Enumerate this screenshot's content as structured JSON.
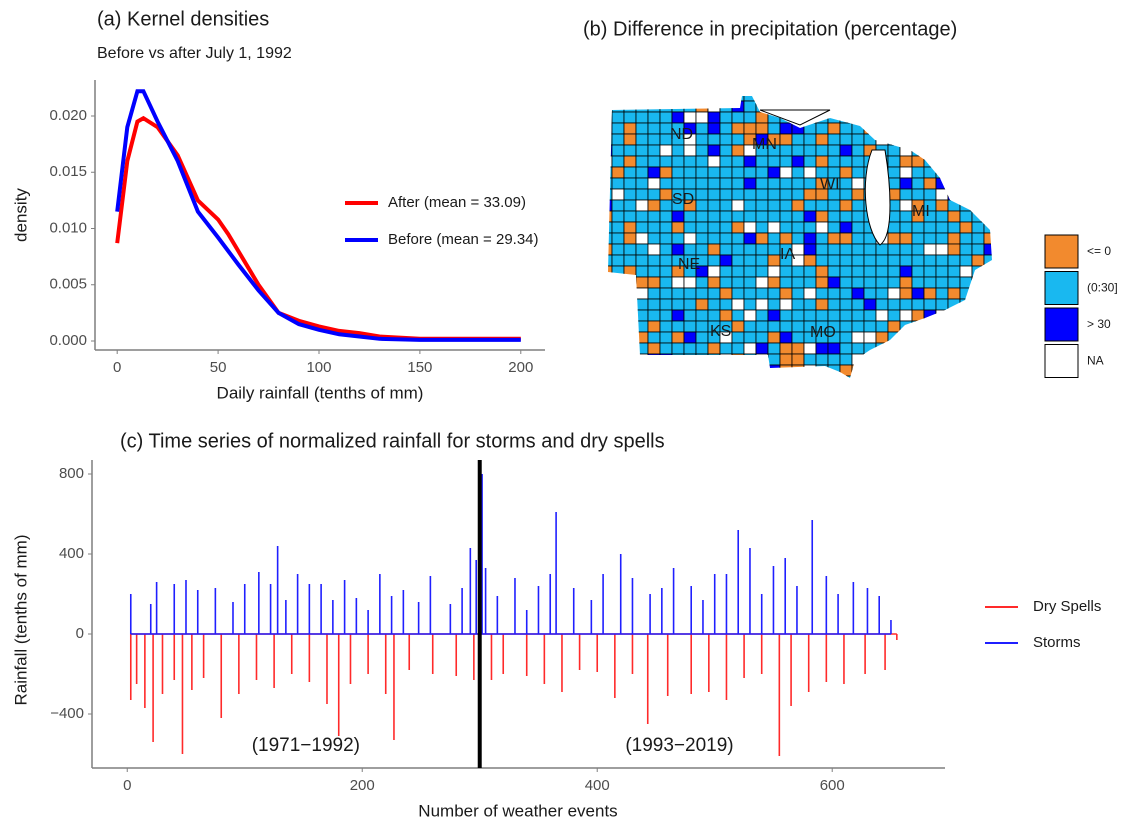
{
  "chart_data": [
    {
      "type": "line",
      "title": "(a) Kernel densities",
      "subtitle": "Before vs after July 1, 1992",
      "x_label": "Daily rainfall (tenths of mm)",
      "y_label": "density",
      "x": [
        0,
        5,
        10,
        13,
        20,
        30,
        40,
        50,
        55,
        60,
        70,
        80,
        90,
        100,
        110,
        120,
        130,
        150,
        200
      ],
      "series": [
        {
          "name": "After (mean = 33.09)",
          "color": "#ff0000",
          "values": [
            0.0087,
            0.016,
            0.0195,
            0.0198,
            0.019,
            0.0165,
            0.0125,
            0.0108,
            0.0095,
            0.008,
            0.005,
            0.0025,
            0.0018,
            0.0013,
            0.0009,
            0.0007,
            0.0004,
            0.0002,
            0.0002
          ]
        },
        {
          "name": "Before (mean = 29.34)",
          "color": "#0000ff",
          "values": [
            0.0115,
            0.019,
            0.0222,
            0.0222,
            0.0195,
            0.016,
            0.0115,
            0.0092,
            0.008,
            0.0068,
            0.0045,
            0.0025,
            0.0015,
            0.001,
            0.0006,
            0.0004,
            0.0002,
            0.0001,
            0.0001
          ]
        }
      ],
      "xlim": [
        -11,
        212
      ],
      "xticks": [
        0,
        50,
        100,
        150,
        200
      ],
      "ylim": [
        -0.0008,
        0.0232
      ],
      "yticks": [
        {
          "value": 0,
          "label": "0.000"
        },
        {
          "value": 0.005,
          "label": "0.005"
        },
        {
          "value": 0.01,
          "label": "0.010"
        },
        {
          "value": 0.015,
          "label": "0.015"
        },
        {
          "value": 0.02,
          "label": "0.020"
        }
      ]
    },
    {
      "type": "map",
      "title": "(b) Difference in precipitation (percentage)",
      "categories": [
        "<= 0",
        "(0:30]",
        "> 30",
        "NA"
      ],
      "colors": [
        "#f28a2e",
        "#19b8f0",
        "#0000ff",
        "#ffffff"
      ],
      "labels": [
        "ND",
        "MN",
        "SD",
        "WI",
        "MI",
        "NE",
        "IA",
        "KS",
        "MO"
      ]
    },
    {
      "type": "spike",
      "title": "(c) Time series of normalized rainfall for storms and dry spells",
      "x_label": "Number of weather events",
      "y_label": "Rainfall (tenths of mm)",
      "series": [
        {
          "name": "Dry Spells",
          "color": "#ff2a2a",
          "x": [
            3,
            8,
            15,
            22,
            30,
            40,
            47,
            55,
            65,
            80,
            95,
            110,
            125,
            140,
            155,
            170,
            180,
            190,
            205,
            220,
            227,
            240,
            260,
            280,
            295,
            310,
            320,
            340,
            355,
            370,
            385,
            400,
            415,
            430,
            443,
            460,
            480,
            495,
            510,
            525,
            540,
            555,
            565,
            580,
            595,
            610,
            628,
            645,
            655
          ],
          "values": [
            -330,
            -250,
            -370,
            -540,
            -300,
            -230,
            -600,
            -280,
            -220,
            -420,
            -300,
            -230,
            -270,
            -200,
            -240,
            -350,
            -510,
            -250,
            -200,
            -300,
            -530,
            -180,
            -200,
            -210,
            -230,
            -230,
            -200,
            -210,
            -250,
            -290,
            -180,
            -190,
            -320,
            -200,
            -450,
            -310,
            -300,
            -290,
            -330,
            -220,
            -200,
            -610,
            -360,
            -290,
            -240,
            -250,
            -200,
            -180,
            -30
          ]
        },
        {
          "name": "Storms",
          "color": "#1f1fff",
          "x": [
            3,
            20,
            25,
            40,
            50,
            60,
            75,
            90,
            100,
            112,
            122,
            128,
            135,
            145,
            155,
            165,
            175,
            185,
            195,
            205,
            215,
            225,
            235,
            248,
            258,
            275,
            285,
            292,
            297,
            302,
            305,
            315,
            330,
            340,
            350,
            360,
            365,
            380,
            395,
            405,
            420,
            430,
            445,
            455,
            465,
            480,
            490,
            500,
            510,
            520,
            530,
            540,
            550,
            560,
            570,
            583,
            595,
            605,
            618,
            630,
            640,
            650
          ],
          "values": [
            200,
            150,
            260,
            250,
            270,
            220,
            230,
            160,
            250,
            310,
            250,
            440,
            170,
            300,
            250,
            250,
            170,
            270,
            180,
            120,
            300,
            190,
            220,
            160,
            290,
            150,
            230,
            430,
            370,
            800,
            330,
            190,
            280,
            120,
            240,
            300,
            610,
            230,
            170,
            300,
            400,
            280,
            200,
            230,
            330,
            240,
            170,
            300,
            300,
            520,
            430,
            200,
            340,
            380,
            240,
            570,
            290,
            200,
            260,
            230,
            190,
            70
          ]
        }
      ],
      "vline": 300,
      "annotations": [
        {
          "text": "(1971−1992)",
          "x": 152,
          "y": -560
        },
        {
          "text": "(1993−2019)",
          "x": 470,
          "y": -560
        }
      ],
      "xlim": [
        -30,
        696
      ],
      "xticks": [
        0,
        200,
        400,
        600
      ],
      "ylim": [
        -670,
        870
      ],
      "yticks": [
        {
          "value": -400,
          "label": "−400"
        },
        0,
        400,
        800
      ]
    }
  ]
}
